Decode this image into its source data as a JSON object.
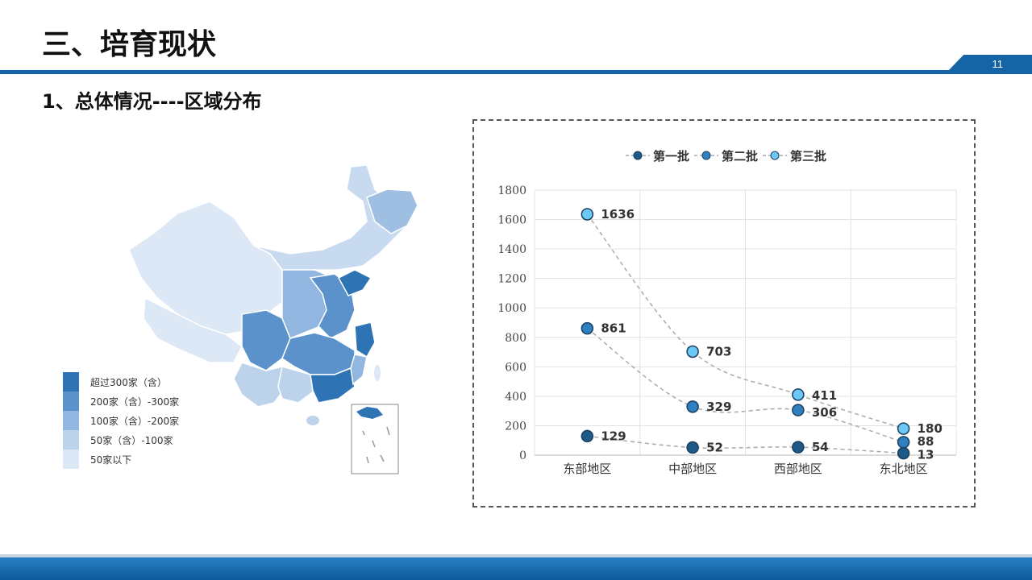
{
  "header": {
    "title": "三、培育现状",
    "page_number": "11"
  },
  "section": {
    "subtitle": "1、总体情况----区域分布"
  },
  "map_legend": {
    "items": [
      {
        "label": "超过300家（含）",
        "color": "#2e74b5"
      },
      {
        "label": "200家（含）-300家",
        "color": "#5b92cc"
      },
      {
        "label": "100家（含）-200家",
        "color": "#91b6df"
      },
      {
        "label": "50家（含）-100家",
        "color": "#bdd3ec"
      },
      {
        "label": "50家以下",
        "color": "#dce8f5"
      }
    ]
  },
  "chart_data": {
    "type": "line",
    "title": "",
    "xlabel": "",
    "ylabel": "",
    "categories": [
      "东部地区",
      "中部地区",
      "西部地区",
      "东北地区"
    ],
    "ylim": [
      0,
      1800
    ],
    "yticks": [
      0,
      200,
      400,
      600,
      800,
      1000,
      1200,
      1400,
      1600,
      1800
    ],
    "grid": true,
    "legend_position": "top",
    "series": [
      {
        "name": "第一批",
        "values": [
          129,
          52,
          54,
          13
        ],
        "color": "#1d5a87"
      },
      {
        "name": "第二批",
        "values": [
          861,
          329,
          306,
          88
        ],
        "color": "#2f80c0"
      },
      {
        "name": "第三批",
        "values": [
          1636,
          703,
          411,
          180
        ],
        "color": "#6cc8f4"
      }
    ]
  }
}
